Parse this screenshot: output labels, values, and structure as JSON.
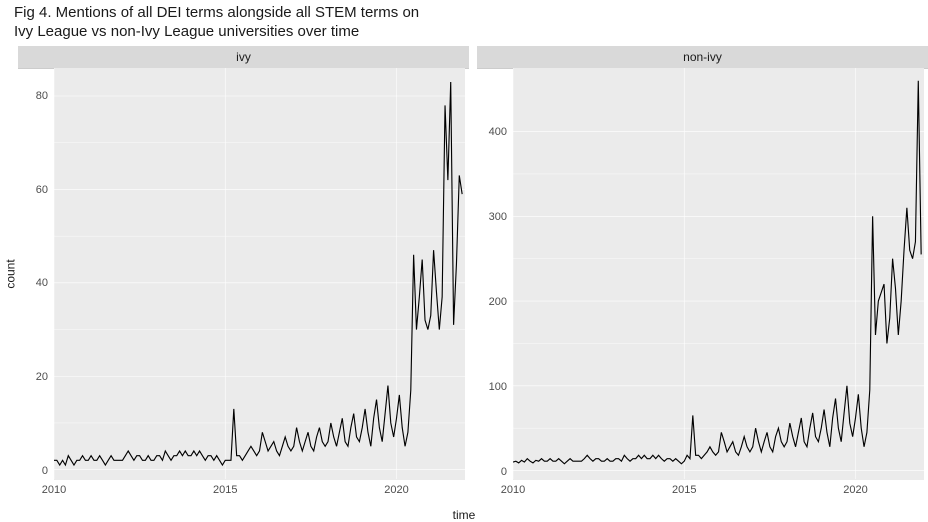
{
  "title_line1": "Fig 4. Mentions of all DEI terms alongside all STEM terms on",
  "title_line2": "Ivy League vs non-Ivy League universities over time",
  "xlabel": "time",
  "ylabel": "count",
  "background_color": "#ffffff",
  "panel_bg": "#ebebeb",
  "strip_bg": "#d9d9d9",
  "grid_color": "#ffffff",
  "line_color": "#000000",
  "line_width": 1.1,
  "title_fontsize": 15,
  "axis_fontsize": 11,
  "label_fontsize": 12,
  "xlim": [
    2010,
    2022
  ],
  "xticks": [
    2010,
    2015,
    2020
  ],
  "panels": [
    {
      "facet_label": "ivy",
      "ylim": [
        -2,
        86
      ],
      "yticks": [
        0,
        20,
        40,
        60,
        80
      ],
      "x": [
        2010.0,
        2010.083,
        2010.167,
        2010.25,
        2010.333,
        2010.417,
        2010.5,
        2010.583,
        2010.667,
        2010.75,
        2010.833,
        2010.917,
        2011.0,
        2011.083,
        2011.167,
        2011.25,
        2011.333,
        2011.417,
        2011.5,
        2011.583,
        2011.667,
        2011.75,
        2011.833,
        2011.917,
        2012.0,
        2012.083,
        2012.167,
        2012.25,
        2012.333,
        2012.417,
        2012.5,
        2012.583,
        2012.667,
        2012.75,
        2012.833,
        2012.917,
        2013.0,
        2013.083,
        2013.167,
        2013.25,
        2013.333,
        2013.417,
        2013.5,
        2013.583,
        2013.667,
        2013.75,
        2013.833,
        2013.917,
        2014.0,
        2014.083,
        2014.167,
        2014.25,
        2014.333,
        2014.417,
        2014.5,
        2014.583,
        2014.667,
        2014.75,
        2014.833,
        2014.917,
        2015.0,
        2015.083,
        2015.167,
        2015.25,
        2015.333,
        2015.417,
        2015.5,
        2015.583,
        2015.667,
        2015.75,
        2015.833,
        2015.917,
        2016.0,
        2016.083,
        2016.167,
        2016.25,
        2016.333,
        2016.417,
        2016.5,
        2016.583,
        2016.667,
        2016.75,
        2016.833,
        2016.917,
        2017.0,
        2017.083,
        2017.167,
        2017.25,
        2017.333,
        2017.417,
        2017.5,
        2017.583,
        2017.667,
        2017.75,
        2017.833,
        2017.917,
        2018.0,
        2018.083,
        2018.167,
        2018.25,
        2018.333,
        2018.417,
        2018.5,
        2018.583,
        2018.667,
        2018.75,
        2018.833,
        2018.917,
        2019.0,
        2019.083,
        2019.167,
        2019.25,
        2019.333,
        2019.417,
        2019.5,
        2019.583,
        2019.667,
        2019.75,
        2019.833,
        2019.917,
        2020.0,
        2020.083,
        2020.167,
        2020.25,
        2020.333,
        2020.417,
        2020.5,
        2020.583,
        2020.667,
        2020.75,
        2020.833,
        2020.917,
        2021.0,
        2021.083,
        2021.167,
        2021.25,
        2021.333,
        2021.417,
        2021.5,
        2021.583,
        2021.667,
        2021.75,
        2021.833,
        2021.917
      ],
      "y": [
        2,
        2,
        1,
        2,
        1,
        3,
        2,
        1,
        2,
        2,
        3,
        2,
        2,
        3,
        2,
        2,
        3,
        2,
        1,
        2,
        3,
        2,
        2,
        2,
        2,
        3,
        4,
        3,
        2,
        3,
        3,
        2,
        2,
        3,
        2,
        2,
        3,
        3,
        2,
        4,
        3,
        2,
        3,
        3,
        4,
        3,
        4,
        3,
        3,
        4,
        3,
        4,
        3,
        2,
        3,
        3,
        2,
        3,
        2,
        1,
        2,
        2,
        2,
        13,
        3,
        3,
        2,
        3,
        4,
        5,
        4,
        3,
        4,
        8,
        6,
        4,
        5,
        6,
        4,
        3,
        5,
        7,
        5,
        4,
        5,
        9,
        6,
        4,
        6,
        8,
        5,
        4,
        7,
        9,
        6,
        5,
        6,
        10,
        7,
        5,
        8,
        11,
        6,
        5,
        9,
        12,
        7,
        6,
        9,
        13,
        8,
        5,
        11,
        15,
        9,
        6,
        12,
        18,
        10,
        7,
        11,
        16,
        9,
        5,
        8,
        17,
        46,
        30,
        37,
        45,
        32,
        30,
        33,
        47,
        38,
        30,
        37,
        78,
        62,
        83,
        31,
        44,
        63,
        59
      ]
    },
    {
      "facet_label": "non-ivy",
      "ylim": [
        -10,
        475
      ],
      "yticks": [
        0,
        100,
        200,
        300,
        400
      ],
      "x": [
        2010.0,
        2010.083,
        2010.167,
        2010.25,
        2010.333,
        2010.417,
        2010.5,
        2010.583,
        2010.667,
        2010.75,
        2010.833,
        2010.917,
        2011.0,
        2011.083,
        2011.167,
        2011.25,
        2011.333,
        2011.417,
        2011.5,
        2011.583,
        2011.667,
        2011.75,
        2011.833,
        2011.917,
        2012.0,
        2012.083,
        2012.167,
        2012.25,
        2012.333,
        2012.417,
        2012.5,
        2012.583,
        2012.667,
        2012.75,
        2012.833,
        2012.917,
        2013.0,
        2013.083,
        2013.167,
        2013.25,
        2013.333,
        2013.417,
        2013.5,
        2013.583,
        2013.667,
        2013.75,
        2013.833,
        2013.917,
        2014.0,
        2014.083,
        2014.167,
        2014.25,
        2014.333,
        2014.417,
        2014.5,
        2014.583,
        2014.667,
        2014.75,
        2014.833,
        2014.917,
        2015.0,
        2015.083,
        2015.167,
        2015.25,
        2015.333,
        2015.417,
        2015.5,
        2015.583,
        2015.667,
        2015.75,
        2015.833,
        2015.917,
        2016.0,
        2016.083,
        2016.167,
        2016.25,
        2016.333,
        2016.417,
        2016.5,
        2016.583,
        2016.667,
        2016.75,
        2016.833,
        2016.917,
        2017.0,
        2017.083,
        2017.167,
        2017.25,
        2017.333,
        2017.417,
        2017.5,
        2017.583,
        2017.667,
        2017.75,
        2017.833,
        2017.917,
        2018.0,
        2018.083,
        2018.167,
        2018.25,
        2018.333,
        2018.417,
        2018.5,
        2018.583,
        2018.667,
        2018.75,
        2018.833,
        2018.917,
        2019.0,
        2019.083,
        2019.167,
        2019.25,
        2019.333,
        2019.417,
        2019.5,
        2019.583,
        2019.667,
        2019.75,
        2019.833,
        2019.917,
        2020.0,
        2020.083,
        2020.167,
        2020.25,
        2020.333,
        2020.417,
        2020.5,
        2020.583,
        2020.667,
        2020.75,
        2020.833,
        2020.917,
        2021.0,
        2021.083,
        2021.167,
        2021.25,
        2021.333,
        2021.417,
        2021.5,
        2021.583,
        2021.667,
        2021.75,
        2021.833,
        2021.917
      ],
      "y": [
        10,
        11,
        9,
        12,
        10,
        14,
        11,
        9,
        12,
        11,
        14,
        11,
        11,
        14,
        11,
        11,
        14,
        11,
        8,
        11,
        14,
        11,
        11,
        11,
        11,
        14,
        18,
        14,
        11,
        14,
        14,
        11,
        11,
        14,
        11,
        11,
        14,
        14,
        11,
        18,
        14,
        11,
        14,
        14,
        18,
        14,
        18,
        14,
        14,
        18,
        14,
        18,
        14,
        11,
        14,
        14,
        11,
        14,
        11,
        8,
        11,
        18,
        14,
        65,
        18,
        18,
        14,
        18,
        22,
        28,
        22,
        18,
        22,
        45,
        34,
        22,
        28,
        34,
        22,
        18,
        28,
        40,
        28,
        22,
        28,
        50,
        34,
        22,
        34,
        45,
        28,
        22,
        40,
        50,
        34,
        28,
        34,
        56,
        40,
        28,
        45,
        62,
        34,
        28,
        50,
        68,
        40,
        34,
        50,
        72,
        45,
        28,
        62,
        85,
        50,
        34,
        68,
        100,
        56,
        40,
        62,
        90,
        50,
        28,
        45,
        95,
        300,
        160,
        200,
        210,
        220,
        150,
        180,
        250,
        215,
        160,
        200,
        260,
        310,
        260,
        250,
        270,
        460,
        255
      ]
    }
  ]
}
